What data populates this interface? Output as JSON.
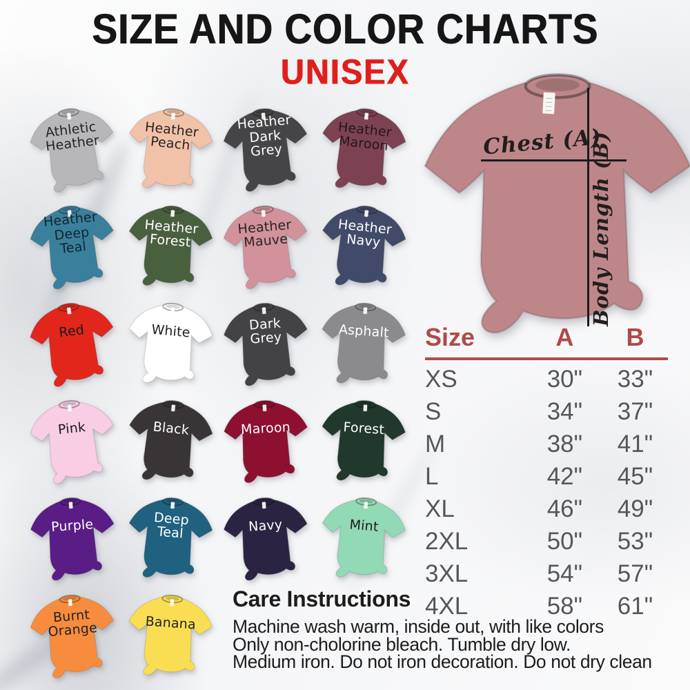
{
  "poster": {
    "title": "SIZE AND COLOR CHARTS",
    "subtitle": "UNISEX"
  },
  "colors": {
    "title": "#161616",
    "subtitle": "#e01f1c",
    "table_accent": "#b04a48",
    "measure_line": "#1b1b1b"
  },
  "color_chart": {
    "shirts": [
      {
        "label": "Athletic\nHeather",
        "color": "#b7b7b9",
        "text_color": "#242424",
        "tilt": -7
      },
      {
        "label": "Heather\nPeach",
        "color": "#f2c2a8",
        "text_color": "#242424",
        "tilt": 6
      },
      {
        "label": "Heather\nDark\nGrey",
        "color": "#454547",
        "text_color": "#ffffff",
        "tilt": -5
      },
      {
        "label": "Heather\nMaroon",
        "color": "#7d4251",
        "text_color": "#26161b",
        "tilt": 6
      },
      {
        "label": "Heather\nDeep\nTeal",
        "color": "#3a7f9b",
        "text_color": "#0e2730",
        "tilt": -6
      },
      {
        "label": "Heather\nForest",
        "color": "#49603f",
        "text_color": "#ffffff",
        "tilt": 5
      },
      {
        "label": "Heather\nMauve",
        "color": "#d2929b",
        "text_color": "#242424",
        "tilt": -5
      },
      {
        "label": "Heather\nNavy",
        "color": "#414a68",
        "text_color": "#ffffff",
        "tilt": 6
      },
      {
        "label": "Red",
        "color": "#e2261c",
        "text_color": "#1c1c1c",
        "tilt": -7
      },
      {
        "label": "White",
        "color": "#ffffff",
        "text_color": "#1c1c1c",
        "tilt": 5
      },
      {
        "label": "Dark\nGrey",
        "color": "#434346",
        "text_color": "#ffffff",
        "tilt": -4
      },
      {
        "label": "Asphalt",
        "color": "#8b8b8d",
        "text_color": "#ffffff",
        "tilt": 4
      },
      {
        "label": "Pink",
        "color": "#f9cde4",
        "text_color": "#1c1c1c",
        "tilt": -6
      },
      {
        "label": "Black",
        "color": "#393537",
        "text_color": "#ffffff",
        "tilt": 6
      },
      {
        "label": "Maroon",
        "color": "#8d1030",
        "text_color": "#ffffff",
        "tilt": -3
      },
      {
        "label": "Forest",
        "color": "#21382c",
        "text_color": "#ffffff",
        "tilt": 4
      },
      {
        "label": "Purple",
        "color": "#5a1d85",
        "text_color": "#ffffff",
        "tilt": -4
      },
      {
        "label": "Deep\nTeal",
        "color": "#1f617f",
        "text_color": "#ffffff",
        "tilt": 5
      },
      {
        "label": "Navy",
        "color": "#2a2342",
        "text_color": "#ffffff",
        "tilt": -4
      },
      {
        "label": "Mint",
        "color": "#92d9b5",
        "text_color": "#1c1c1c",
        "tilt": 5
      },
      {
        "label": "Burnt\nOrange",
        "color": "#f88c3e",
        "text_color": "#222222",
        "tilt": -5
      },
      {
        "label": "Banana",
        "color": "#f9de53",
        "text_color": "#222222",
        "tilt": 4
      }
    ]
  },
  "measurement_shirt": {
    "color": "#bd878a",
    "chest_label": "Chest (A)",
    "body_length_label": "Body Length (B)"
  },
  "size_table": {
    "headers": [
      "Size",
      "A",
      "B"
    ],
    "rows": [
      [
        "XS",
        "30\"",
        "33\""
      ],
      [
        "S",
        "34\"",
        "37\""
      ],
      [
        "M",
        "38\"",
        "41\""
      ],
      [
        "L",
        "42\"",
        "45\""
      ],
      [
        "XL",
        "46\"",
        "49\""
      ],
      [
        "2XL",
        "50\"",
        "53\""
      ],
      [
        "3XL",
        "54\"",
        "57\""
      ],
      [
        "4XL",
        "58\"",
        "61\""
      ]
    ]
  },
  "care": {
    "heading": "Care Instructions",
    "lines": [
      "Machine wash warm, inside out, with like colors",
      "Only non-cholorine bleach. Tumble dry low.",
      "Medium iron. Do not iron decoration. Do not dry clean"
    ]
  }
}
